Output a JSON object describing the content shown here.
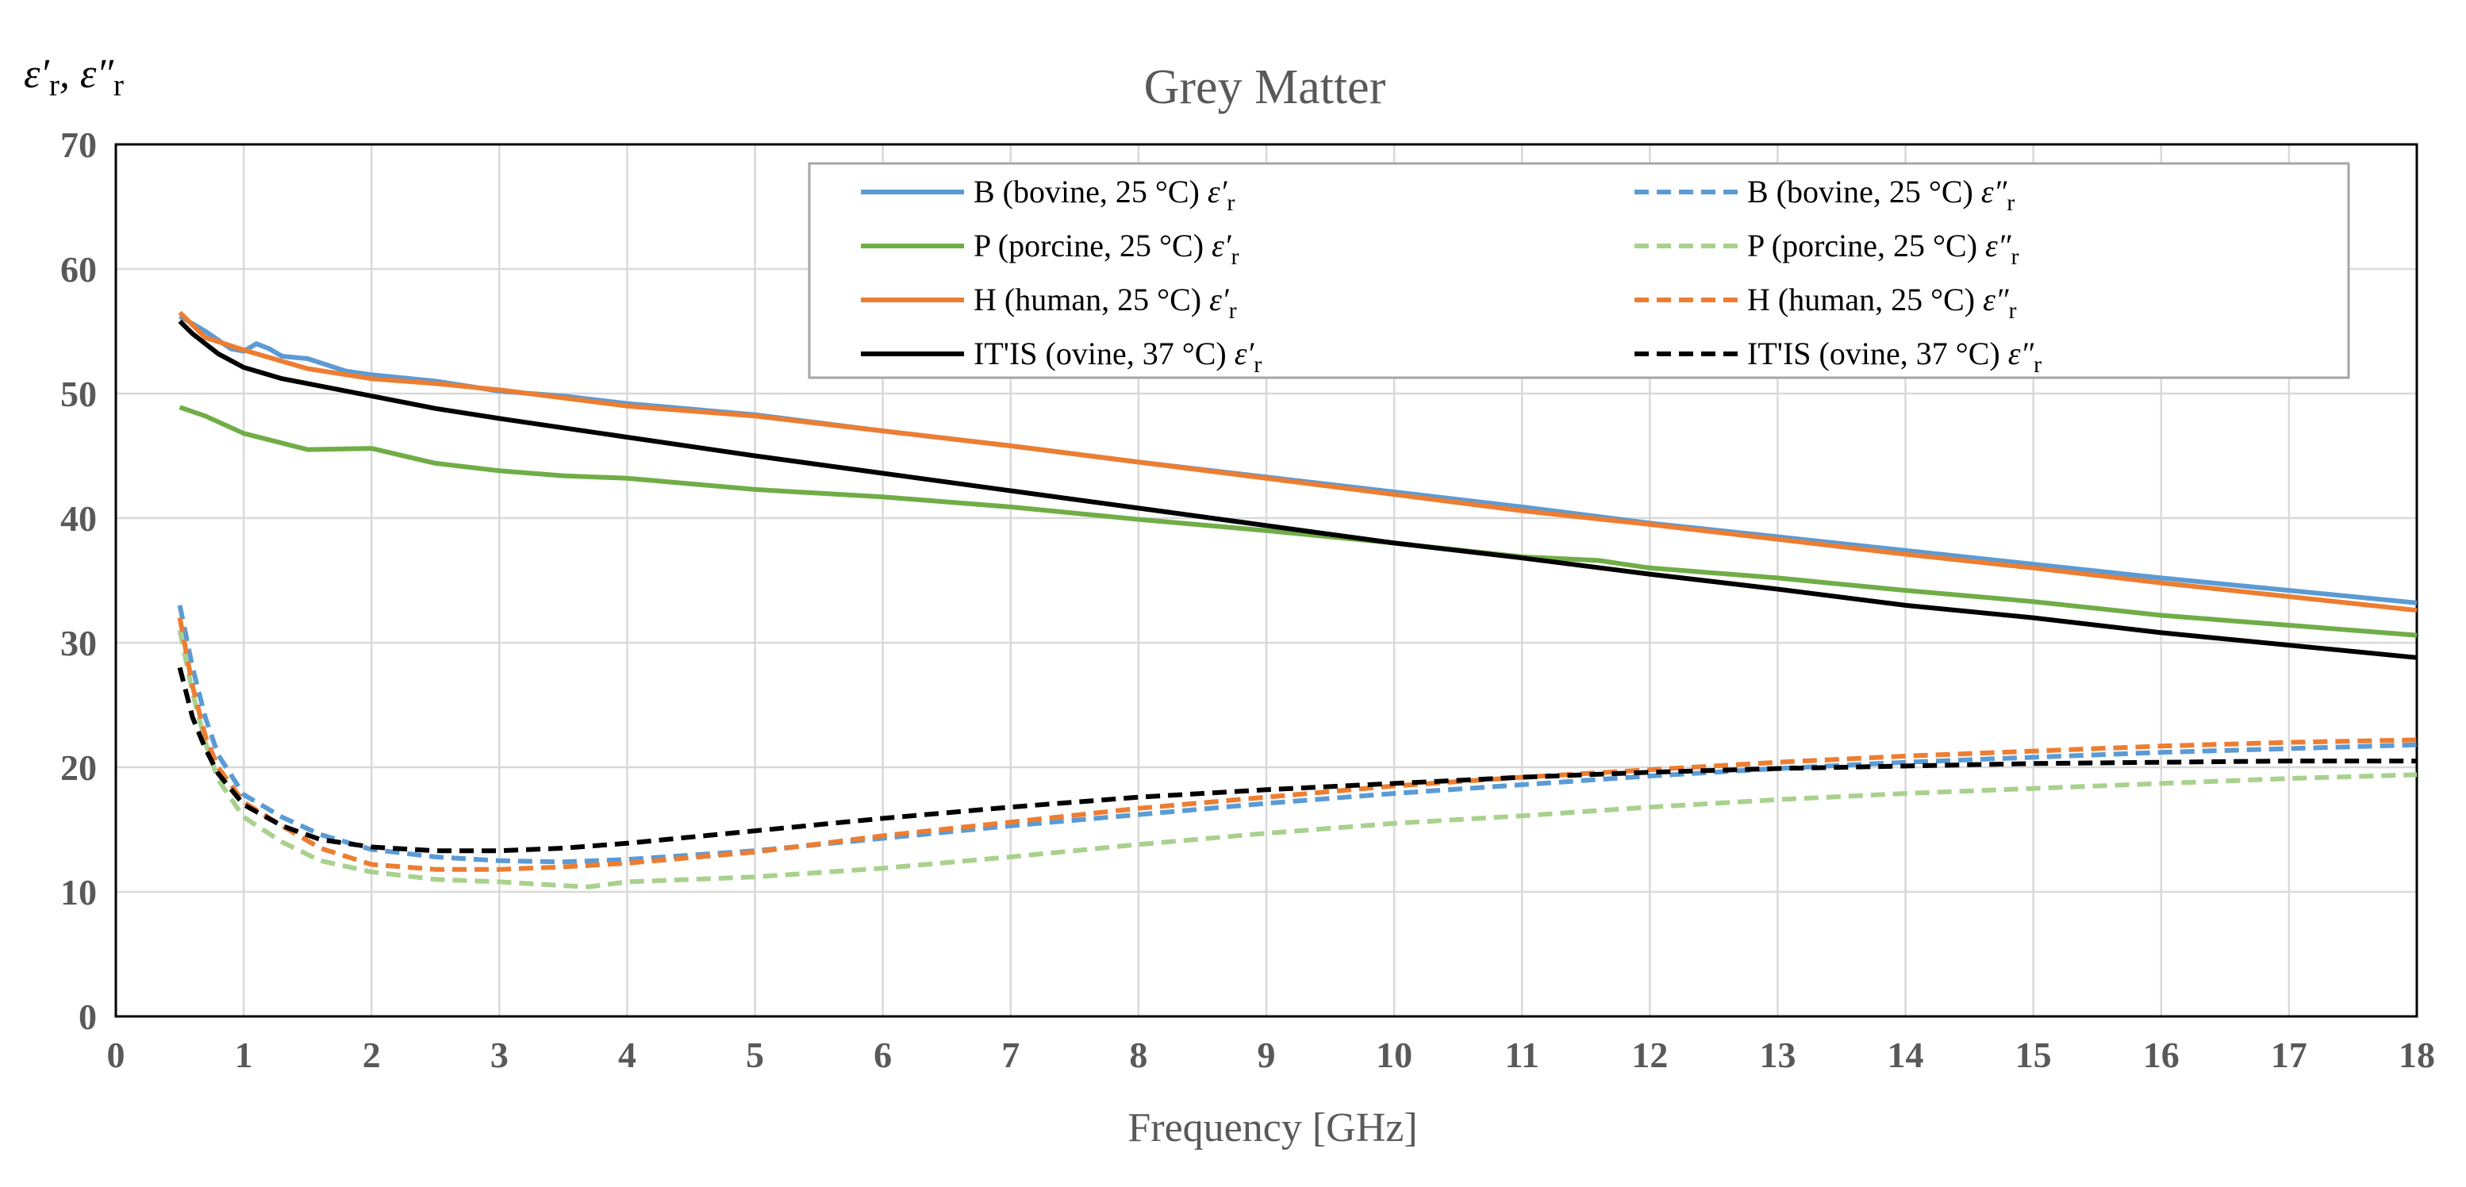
{
  "chart_data": {
    "type": "line",
    "title": "Grey Matter",
    "xlabel": "Frequency [GHz]",
    "ylabel": "ε′r, ε″r",
    "xlim": [
      0,
      18
    ],
    "ylim": [
      0,
      70
    ],
    "xticks": [
      0,
      1,
      2,
      3,
      4,
      5,
      6,
      7,
      8,
      9,
      10,
      11,
      12,
      13,
      14,
      15,
      16,
      17,
      18
    ],
    "yticks": [
      0,
      10,
      20,
      30,
      40,
      50,
      60,
      70
    ],
    "grid": true,
    "legend_position": "top-right",
    "series": [
      {
        "name": "B (bovine, 25 °C) ε′r",
        "color": "#5B9BD5",
        "style": "solid",
        "x": [
          0.5,
          0.7,
          0.9,
          1.0,
          1.1,
          1.2,
          1.3,
          1.5,
          1.8,
          2,
          2.5,
          3,
          3.5,
          4,
          5,
          6,
          7,
          8,
          9,
          10,
          11,
          12,
          13,
          14,
          15,
          16,
          17,
          18
        ],
        "y": [
          56.2,
          55.0,
          53.6,
          53.4,
          54.0,
          53.6,
          53.0,
          52.8,
          51.8,
          51.5,
          51.0,
          50.2,
          49.8,
          49.2,
          48.3,
          47.0,
          45.8,
          44.5,
          43.3,
          42.1,
          40.9,
          39.6,
          38.5,
          37.4,
          36.3,
          35.2,
          34.2,
          33.2
        ]
      },
      {
        "name": "P (porcine, 25 °C) ε′r",
        "color": "#70AD47",
        "style": "solid",
        "x": [
          0.5,
          0.7,
          1.0,
          1.5,
          2,
          2.5,
          3,
          3.5,
          4,
          5,
          6,
          7,
          8,
          9,
          10,
          11,
          11.6,
          12,
          13,
          14,
          15,
          16,
          17,
          18
        ],
        "y": [
          48.9,
          48.2,
          46.8,
          45.5,
          45.6,
          44.4,
          43.8,
          43.4,
          43.2,
          42.3,
          41.7,
          40.9,
          39.9,
          39.0,
          38.0,
          36.9,
          36.6,
          36.0,
          35.2,
          34.2,
          33.3,
          32.2,
          31.4,
          30.6
        ]
      },
      {
        "name": "H (human, 25 °C) ε′r",
        "color": "#ED7D31",
        "style": "solid",
        "x": [
          0.5,
          0.7,
          1.0,
          1.5,
          2,
          2.5,
          3,
          4,
          5,
          6,
          7,
          8,
          9,
          10,
          11,
          12,
          13,
          14,
          15,
          16,
          17,
          18
        ],
        "y": [
          56.5,
          54.5,
          53.5,
          52.0,
          51.2,
          50.8,
          50.3,
          49.0,
          48.2,
          47.0,
          45.8,
          44.5,
          43.2,
          41.9,
          40.6,
          39.5,
          38.3,
          37.1,
          36.0,
          34.8,
          33.7,
          32.6
        ]
      },
      {
        "name": "IT'IS (ovine, 37 °C) ε′r",
        "color": "#000000",
        "style": "solid",
        "x": [
          0.5,
          0.6,
          0.8,
          1.0,
          1.3,
          1.5,
          2,
          2.5,
          3,
          4,
          5,
          6,
          7,
          8,
          9,
          10,
          11,
          12,
          13,
          14,
          15,
          16,
          17,
          18
        ],
        "y": [
          55.8,
          54.8,
          53.2,
          52.1,
          51.2,
          50.8,
          49.8,
          48.8,
          48.0,
          46.5,
          45.0,
          43.6,
          42.2,
          40.8,
          39.4,
          38.0,
          36.8,
          35.5,
          34.3,
          33.0,
          32.0,
          30.8,
          29.8,
          28.8
        ]
      },
      {
        "name": "B (bovine, 25 °C) ε″r",
        "color": "#5B9BD5",
        "style": "dashed",
        "x": [
          0.5,
          0.6,
          0.7,
          0.8,
          1.0,
          1.3,
          1.6,
          2,
          2.5,
          3,
          3.5,
          4,
          5,
          6,
          7,
          8,
          9,
          10,
          11,
          12,
          13,
          14,
          15,
          16,
          17,
          18
        ],
        "y": [
          33.0,
          28.0,
          24.0,
          21.0,
          17.8,
          16.0,
          14.6,
          13.4,
          12.8,
          12.5,
          12.4,
          12.6,
          13.3,
          14.3,
          15.3,
          16.2,
          17.1,
          17.9,
          18.6,
          19.3,
          19.9,
          20.4,
          20.8,
          21.2,
          21.5,
          21.8
        ]
      },
      {
        "name": "P (porcine, 25 °C) ε″r",
        "color": "#A9D18E",
        "style": "dashed",
        "x": [
          0.5,
          0.6,
          0.7,
          0.8,
          1.0,
          1.3,
          1.6,
          2,
          2.5,
          3,
          3.5,
          3.7,
          4,
          5,
          6,
          7,
          8,
          9,
          10,
          11,
          12,
          13,
          14,
          15,
          16,
          17,
          18
        ],
        "y": [
          31.0,
          26.0,
          22.0,
          19.0,
          16.0,
          14.0,
          12.5,
          11.6,
          11.0,
          10.8,
          10.5,
          10.4,
          10.8,
          11.2,
          11.9,
          12.8,
          13.8,
          14.7,
          15.5,
          16.1,
          16.8,
          17.4,
          17.9,
          18.3,
          18.7,
          19.1,
          19.4
        ]
      },
      {
        "name": "H (human, 25 °C) ε″r",
        "color": "#ED7D31",
        "style": "dashed",
        "x": [
          0.5,
          0.6,
          0.7,
          0.8,
          1.0,
          1.3,
          1.6,
          2,
          2.5,
          3,
          3.5,
          4,
          5,
          6,
          7,
          8,
          9,
          10,
          11,
          12,
          13,
          14,
          15,
          16,
          17,
          18
        ],
        "y": [
          32.0,
          26.5,
          22.5,
          20.0,
          17.2,
          15.3,
          13.5,
          12.2,
          11.8,
          11.8,
          12.0,
          12.3,
          13.2,
          14.5,
          15.6,
          16.7,
          17.6,
          18.5,
          19.2,
          19.8,
          20.4,
          20.9,
          21.3,
          21.7,
          22.0,
          22.2
        ]
      },
      {
        "name": "IT'IS (ovine, 37 °C) ε″r",
        "color": "#000000",
        "style": "dashed",
        "x": [
          0.5,
          0.6,
          0.7,
          0.8,
          1.0,
          1.3,
          1.6,
          2,
          2.5,
          3,
          3.5,
          4,
          5,
          6,
          7,
          8,
          9,
          10,
          11,
          12,
          13,
          14,
          15,
          16,
          17,
          18
        ],
        "y": [
          28.0,
          24.0,
          21.5,
          19.5,
          17.0,
          15.3,
          14.2,
          13.6,
          13.3,
          13.3,
          13.5,
          13.9,
          14.9,
          15.9,
          16.8,
          17.6,
          18.2,
          18.7,
          19.2,
          19.6,
          19.9,
          20.1,
          20.3,
          20.4,
          20.5,
          20.5
        ]
      }
    ]
  }
}
